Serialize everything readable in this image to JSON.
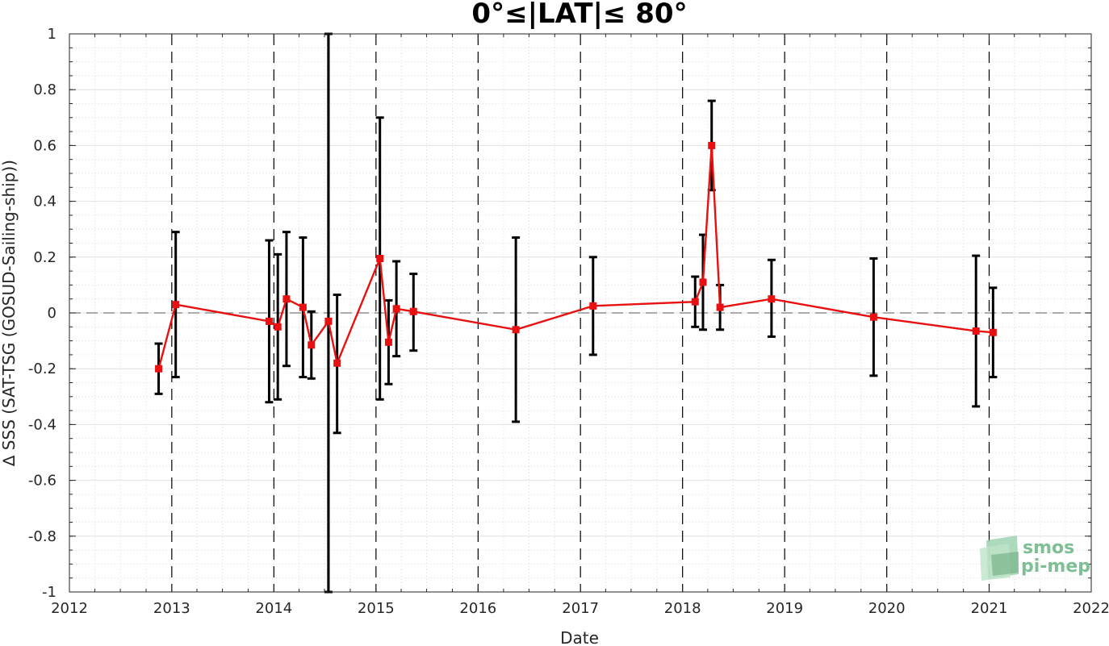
{
  "chart_data": {
    "type": "line",
    "title": "0°≤|LAT|≤ 80°",
    "xlabel": "Date",
    "ylabel": "∆ SSS (SAT-TSG (GOSUD-Sailing-ship))",
    "xlim": [
      "2012-01-01",
      "2022-01-01"
    ],
    "ylim": [
      -1,
      1
    ],
    "x_ticks": [
      "2012",
      "2013",
      "2014",
      "2015",
      "2016",
      "2017",
      "2018",
      "2019",
      "2020",
      "2021",
      "2022"
    ],
    "y_ticks": [
      "-1",
      "-0.8",
      "-0.6",
      "-0.4",
      "-0.2",
      "0",
      "0.2",
      "0.4",
      "0.6",
      "0.8",
      "1"
    ],
    "grid": true,
    "reference_line_y": 0,
    "year_boundary_lines": "dashed",
    "vertical_marker_date": "2014-07-15",
    "series": [
      {
        "color": "#e81010",
        "marker": "square",
        "points": [
          {
            "date": "2012-11-15",
            "y": -0.2,
            "err_low": -0.29,
            "err_high": -0.11
          },
          {
            "date": "2013-01-15",
            "y": 0.03,
            "err_low": -0.23,
            "err_high": 0.29
          },
          {
            "date": "2013-12-15",
            "y": -0.03,
            "err_low": -0.32,
            "err_high": 0.26
          },
          {
            "date": "2014-01-15",
            "y": -0.05,
            "err_low": -0.31,
            "err_high": 0.21
          },
          {
            "date": "2014-02-15",
            "y": 0.05,
            "err_low": -0.19,
            "err_high": 0.29
          },
          {
            "date": "2014-04-15",
            "y": 0.02,
            "err_low": -0.23,
            "err_high": 0.27
          },
          {
            "date": "2014-05-15",
            "y": -0.115,
            "err_low": -0.235,
            "err_high": 0.005
          },
          {
            "date": "2014-07-15",
            "y": -0.03,
            "err_low": -1.0,
            "err_high": 1.0
          },
          {
            "date": "2014-08-15",
            "y": -0.18,
            "err_low": -0.43,
            "err_high": 0.065
          },
          {
            "date": "2015-01-15",
            "y": 0.195,
            "err_low": -0.31,
            "err_high": 0.7
          },
          {
            "date": "2015-02-15",
            "y": -0.105,
            "err_low": -0.255,
            "err_high": 0.045
          },
          {
            "date": "2015-03-15",
            "y": 0.015,
            "err_low": -0.155,
            "err_high": 0.185
          },
          {
            "date": "2015-05-15",
            "y": 0.005,
            "err_low": -0.135,
            "err_high": 0.14
          },
          {
            "date": "2016-05-15",
            "y": -0.06,
            "err_low": -0.39,
            "err_high": 0.27
          },
          {
            "date": "2017-02-15",
            "y": 0.025,
            "err_low": -0.15,
            "err_high": 0.2
          },
          {
            "date": "2018-02-15",
            "y": 0.04,
            "err_low": -0.05,
            "err_high": 0.13
          },
          {
            "date": "2018-03-15",
            "y": 0.11,
            "err_low": -0.06,
            "err_high": 0.28
          },
          {
            "date": "2018-04-15",
            "y": 0.6,
            "err_low": 0.44,
            "err_high": 0.76
          },
          {
            "date": "2018-05-15",
            "y": 0.02,
            "err_low": -0.06,
            "err_high": 0.1
          },
          {
            "date": "2018-11-15",
            "y": 0.05,
            "err_low": -0.085,
            "err_high": 0.19
          },
          {
            "date": "2019-11-15",
            "y": -0.015,
            "err_low": -0.225,
            "err_high": 0.195
          },
          {
            "date": "2020-11-15",
            "y": -0.065,
            "err_low": -0.335,
            "err_high": 0.205
          },
          {
            "date": "2021-01-15",
            "y": -0.07,
            "err_low": -0.23,
            "err_high": 0.09
          }
        ]
      }
    ]
  },
  "logo": {
    "line1": "smos",
    "line2": "pi-mep",
    "color": "#7fbf95"
  }
}
